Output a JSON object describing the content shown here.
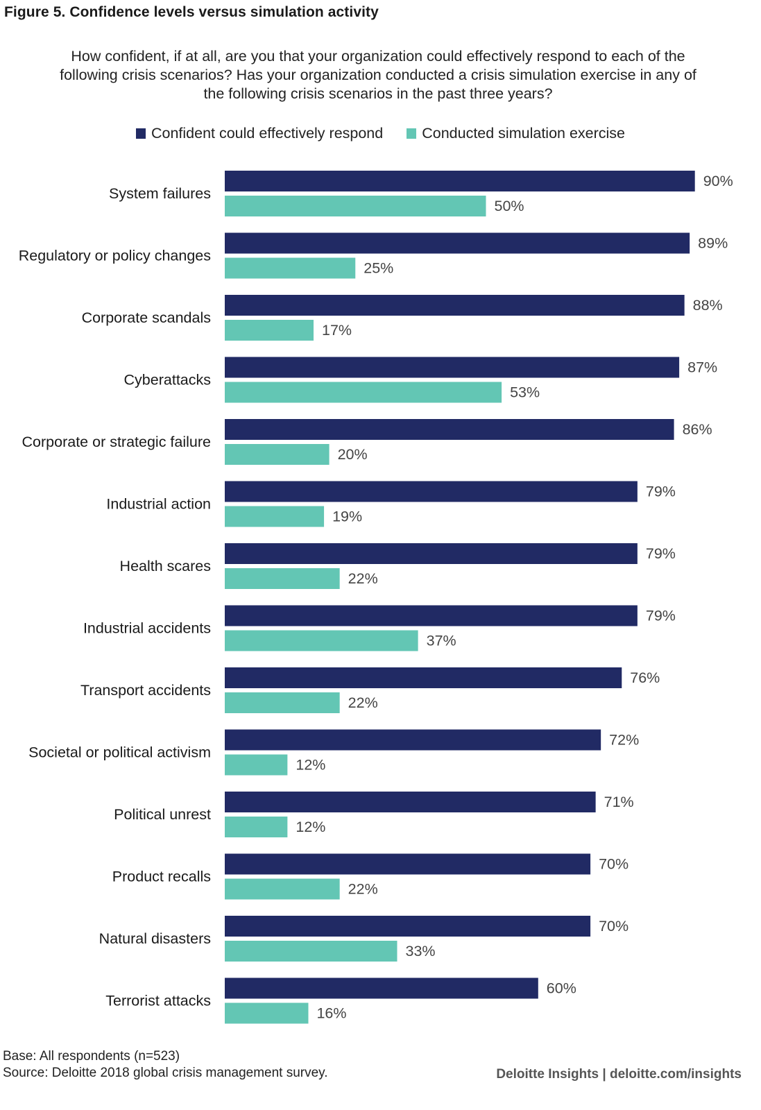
{
  "chart_data": {
    "type": "bar",
    "orientation": "horizontal",
    "title": "Figure 5. Confidence levels versus simulation activity",
    "subtitle": "How confident, if at all, are you that your organization could effectively respond to each of the following crisis scenarios? Has your organization conducted a crisis simulation exercise in any of the following crisis scenarios in the past three years?",
    "xlabel": "",
    "ylabel": "",
    "xlim": [
      0,
      100
    ],
    "grid": false,
    "legend_position": "top-center",
    "categories": [
      "System failures",
      "Regulatory or policy changes",
      "Corporate scandals",
      "Cyberattacks",
      "Corporate or strategic failure",
      "Industrial action",
      "Health scares",
      "Industrial accidents",
      "Transport accidents",
      "Societal or political activism",
      "Political unrest",
      "Product recalls",
      "Natural disasters",
      "Terrorist attacks"
    ],
    "series": [
      {
        "name": "Confident could effectively respond",
        "color": "#212a64",
        "values": [
          90,
          89,
          88,
          87,
          86,
          79,
          79,
          79,
          76,
          72,
          71,
          70,
          70,
          60
        ]
      },
      {
        "name": "Conducted simulation exercise",
        "color": "#63c6b4",
        "values": [
          50,
          25,
          17,
          53,
          20,
          19,
          22,
          37,
          22,
          12,
          12,
          22,
          33,
          16
        ]
      }
    ],
    "value_suffix": "%"
  },
  "footer": {
    "base": "Base: All respondents (n=523)",
    "source": "Source: Deloitte 2018 global crisis management survey.",
    "credit": "Deloitte Insights | deloitte.com/insights"
  }
}
